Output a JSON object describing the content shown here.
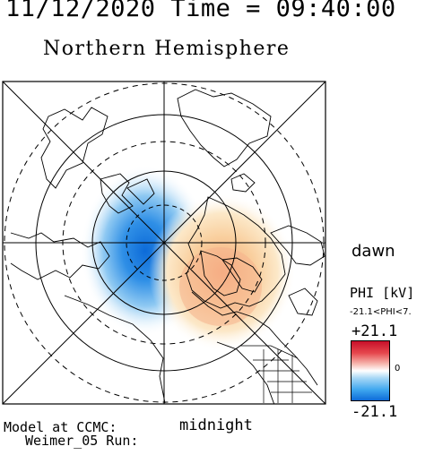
{
  "header": {
    "timestamp": "11/12/2020 Time = 09:40:00",
    "hemisphere": "Northern Hemisphere"
  },
  "map": {
    "projection": "polar",
    "orientation": {
      "right": "dawn",
      "bottom": "midnight"
    },
    "potential_pattern": {
      "negative_cell": "dusk side (left), blue",
      "positive_cell": "dawn side (right), red/orange"
    },
    "colors": {
      "negative": "#0d6bd8",
      "positive": "#c8102a",
      "zero": "#ffffff",
      "land_outline": "#000000"
    }
  },
  "labels": {
    "dawn": "dawn",
    "midnight": "midnight"
  },
  "colorbar": {
    "title": "PHI [kV]",
    "range_text": "-21.1<PHI<7.",
    "max_label": "+21.1",
    "zero_label": "0",
    "min_label": "-21.1"
  },
  "footer": {
    "model": "Model at CCMC:",
    "run": "Weimer_05 Run:"
  }
}
